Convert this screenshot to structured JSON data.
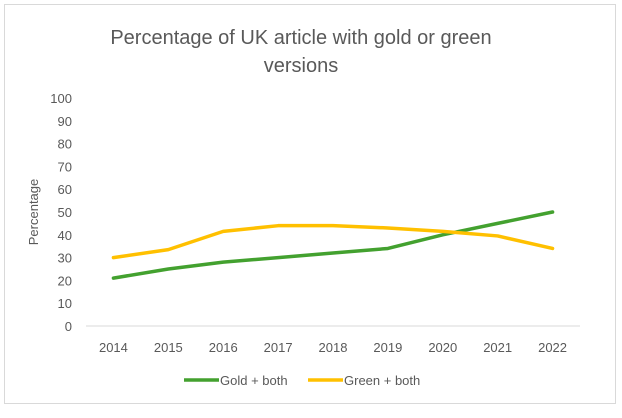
{
  "chart_data": {
    "type": "line",
    "title": "Percentage of UK article with gold or green versions",
    "title_lines": [
      "Percentage of UK article with gold or green",
      "versions"
    ],
    "xlabel": "",
    "ylabel": "Percentage",
    "ylim": [
      0,
      100
    ],
    "yticks": [
      0,
      10,
      20,
      30,
      40,
      50,
      60,
      70,
      80,
      90,
      100
    ],
    "grid": false,
    "legend_position": "bottom",
    "categories": [
      "2014",
      "2015",
      "2016",
      "2017",
      "2018",
      "2019",
      "2020",
      "2021",
      "2022"
    ],
    "series": [
      {
        "name": "Gold + both",
        "color": "#43a12f",
        "values": [
          21,
          25,
          28,
          30,
          32,
          34,
          40,
          45,
          50
        ]
      },
      {
        "name": "Green + both",
        "color": "#ffc000",
        "values": [
          30,
          33.5,
          41.5,
          44,
          44,
          43,
          41.5,
          39.5,
          34
        ]
      }
    ]
  }
}
